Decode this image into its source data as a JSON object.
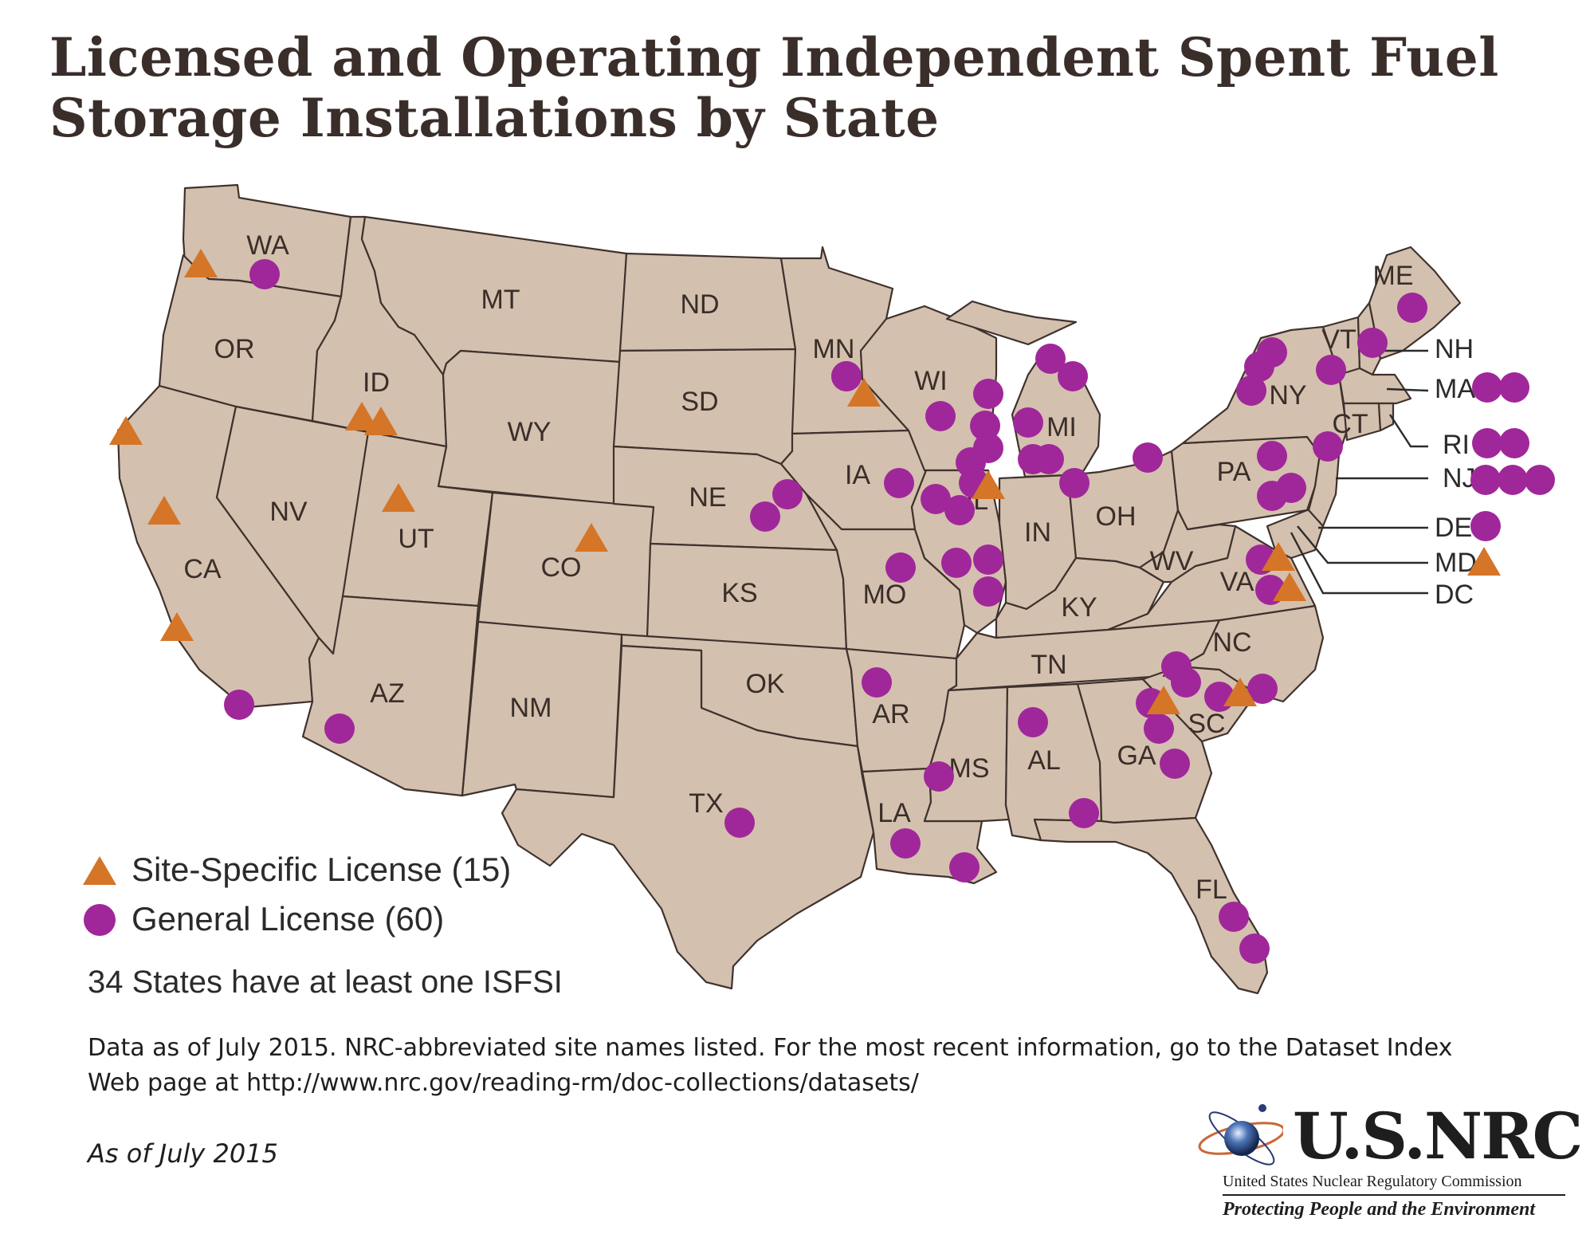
{
  "title": {
    "line1": "Licensed and Operating Independent Spent Fuel",
    "line2": "Storage Installations by State"
  },
  "colors": {
    "land": "#d4c0ae",
    "border": "#3f322d",
    "general_license": "#a0279a",
    "site_specific": "#d57528"
  },
  "legend": {
    "site_specific_label": "Site-Specific License (15)",
    "general_label": "General License (60)",
    "site_specific_icon": "triangle-icon",
    "general_icon": "circle-icon"
  },
  "summary": "34 States have at least one ISFSI",
  "note": {
    "line1": "Data as of July 2015. NRC-abbreviated site names listed. For the most recent information, go to the Dataset Index",
    "line2": "Web page at http://www.nrc.gov/reading-rm/doc-collections/datasets/"
  },
  "as_of": "As of July 2015",
  "logo": {
    "name": "U.S.NRC",
    "subtitle": "United States Nuclear Regulatory Commission",
    "tagline": "Protecting People and the Environment",
    "icon": "atom-globe-icon"
  },
  "states": [
    "WA",
    "OR",
    "CA",
    "NV",
    "ID",
    "MT",
    "WY",
    "UT",
    "CO",
    "AZ",
    "NM",
    "ND",
    "SD",
    "NE",
    "KS",
    "OK",
    "TX",
    "MN",
    "IA",
    "MO",
    "AR",
    "LA",
    "WI",
    "IL",
    "MI",
    "IN",
    "OH",
    "KY",
    "TN",
    "MS",
    "AL",
    "GA",
    "FL",
    "SC",
    "NC",
    "VA",
    "WV",
    "PA",
    "NY",
    "ME"
  ],
  "northeast_labels": {
    "NH": "NH",
    "MA": "MA",
    "RI": "RI",
    "NJ": "NJ",
    "DE": "DE",
    "MD": "MD",
    "DC": "DC",
    "VT": "VT",
    "CT": "CT"
  }
}
